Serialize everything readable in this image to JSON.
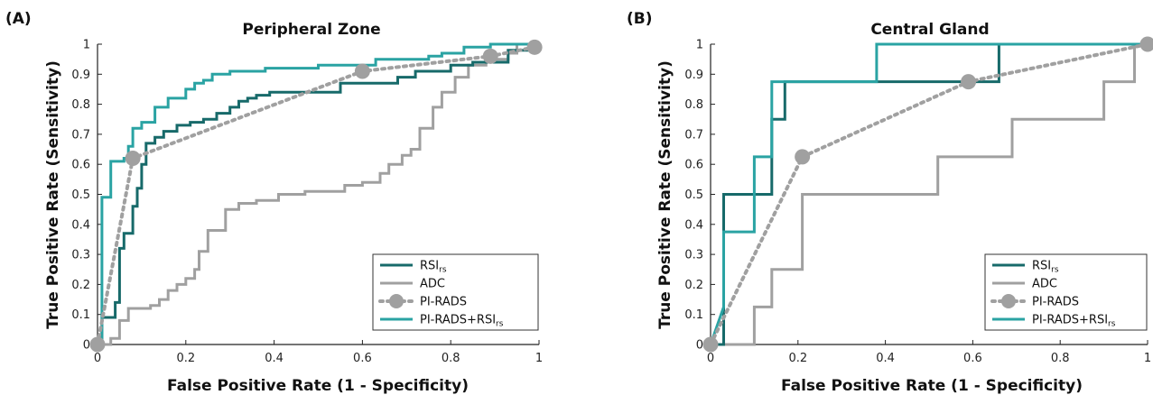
{
  "colors": {
    "rsi": "#176a6a",
    "adc": "#a0a0a0",
    "pirads": "#a0a0a0",
    "combo": "#2aa3a3",
    "axis": "#222222"
  },
  "chart_data": [
    {
      "type": "line",
      "panel_label": "(A)",
      "title": "Peripheral Zone",
      "xlabel": "False Positive Rate (1 - Specificity)",
      "ylabel": "True Positive Rate (Sensitivity)",
      "xlim": [
        0,
        1
      ],
      "ylim": [
        0,
        1
      ],
      "xticks": [
        "0",
        "0.2",
        "0.4",
        "0.6",
        "0.8",
        "1"
      ],
      "yticks": [
        "0",
        "0.1",
        "0.2",
        "0.3",
        "0.4",
        "0.5",
        "0.6",
        "0.7",
        "0.8",
        "0.9",
        "1"
      ],
      "grid": false,
      "legend_position": "bottom-right",
      "series": [
        {
          "name": "RSI",
          "subscript": "rs",
          "style": "step",
          "color_key": "rsi",
          "x": [
            0,
            0.01,
            0.01,
            0.04,
            0.04,
            0.05,
            0.05,
            0.06,
            0.06,
            0.08,
            0.08,
            0.09,
            0.09,
            0.1,
            0.1,
            0.11,
            0.11,
            0.13,
            0.13,
            0.15,
            0.15,
            0.18,
            0.18,
            0.21,
            0.21,
            0.24,
            0.24,
            0.27,
            0.27,
            0.3,
            0.3,
            0.32,
            0.32,
            0.34,
            0.34,
            0.36,
            0.36,
            0.39,
            0.39,
            0.55,
            0.55,
            0.68,
            0.68,
            0.72,
            0.72,
            0.8,
            0.8,
            0.85,
            0.85,
            0.93,
            0.93,
            1.0,
            1.0
          ],
          "y": [
            0,
            0,
            0.09,
            0.09,
            0.14,
            0.14,
            0.32,
            0.32,
            0.37,
            0.37,
            0.46,
            0.46,
            0.52,
            0.52,
            0.6,
            0.6,
            0.67,
            0.67,
            0.69,
            0.69,
            0.71,
            0.71,
            0.73,
            0.73,
            0.74,
            0.74,
            0.75,
            0.75,
            0.77,
            0.77,
            0.79,
            0.79,
            0.81,
            0.81,
            0.82,
            0.82,
            0.83,
            0.83,
            0.84,
            0.84,
            0.87,
            0.87,
            0.89,
            0.89,
            0.91,
            0.91,
            0.93,
            0.93,
            0.94,
            0.94,
            0.98,
            0.98,
            1.0
          ]
        },
        {
          "name": "ADC",
          "style": "step",
          "color_key": "adc",
          "x": [
            0,
            0.03,
            0.03,
            0.05,
            0.05,
            0.07,
            0.07,
            0.12,
            0.12,
            0.14,
            0.14,
            0.16,
            0.16,
            0.18,
            0.18,
            0.2,
            0.2,
            0.22,
            0.22,
            0.23,
            0.23,
            0.25,
            0.25,
            0.29,
            0.29,
            0.32,
            0.32,
            0.36,
            0.36,
            0.41,
            0.41,
            0.47,
            0.47,
            0.56,
            0.56,
            0.6,
            0.6,
            0.64,
            0.64,
            0.66,
            0.66,
            0.69,
            0.69,
            0.71,
            0.71,
            0.73,
            0.73,
            0.76,
            0.76,
            0.78,
            0.78,
            0.81,
            0.81,
            0.84,
            0.84,
            0.88,
            0.88,
            0.93,
            0.93,
            0.95,
            0.95,
            1.0
          ],
          "y": [
            0,
            0,
            0.02,
            0.02,
            0.08,
            0.08,
            0.12,
            0.12,
            0.13,
            0.13,
            0.15,
            0.15,
            0.18,
            0.18,
            0.2,
            0.2,
            0.22,
            0.22,
            0.25,
            0.25,
            0.31,
            0.31,
            0.38,
            0.38,
            0.45,
            0.45,
            0.47,
            0.47,
            0.48,
            0.48,
            0.5,
            0.5,
            0.51,
            0.51,
            0.53,
            0.53,
            0.54,
            0.54,
            0.57,
            0.57,
            0.6,
            0.6,
            0.63,
            0.63,
            0.65,
            0.65,
            0.72,
            0.72,
            0.79,
            0.79,
            0.84,
            0.84,
            0.89,
            0.89,
            0.93,
            0.93,
            0.95,
            0.95,
            0.97,
            0.97,
            1.0,
            1.0
          ]
        },
        {
          "name": "PI-RADS",
          "style": "dotted-markers",
          "color_key": "pirads",
          "x": [
            0,
            0.08,
            0.6,
            0.89,
            0.99
          ],
          "y": [
            0,
            0.62,
            0.91,
            0.96,
            0.99
          ]
        },
        {
          "name": "PI-RADS+RSI",
          "subscript": "rs",
          "style": "step",
          "color_key": "combo",
          "x": [
            0,
            0.01,
            0.01,
            0.03,
            0.03,
            0.06,
            0.06,
            0.07,
            0.07,
            0.08,
            0.08,
            0.1,
            0.1,
            0.13,
            0.13,
            0.16,
            0.16,
            0.2,
            0.2,
            0.22,
            0.22,
            0.24,
            0.24,
            0.26,
            0.26,
            0.3,
            0.3,
            0.38,
            0.38,
            0.5,
            0.5,
            0.63,
            0.63,
            0.75,
            0.75,
            0.78,
            0.78,
            0.83,
            0.83,
            0.89,
            0.89,
            1.0
          ],
          "y": [
            0,
            0,
            0.49,
            0.49,
            0.61,
            0.61,
            0.62,
            0.62,
            0.66,
            0.66,
            0.72,
            0.72,
            0.74,
            0.74,
            0.79,
            0.79,
            0.82,
            0.82,
            0.85,
            0.85,
            0.87,
            0.87,
            0.88,
            0.88,
            0.9,
            0.9,
            0.91,
            0.91,
            0.92,
            0.92,
            0.93,
            0.93,
            0.95,
            0.95,
            0.96,
            0.96,
            0.97,
            0.97,
            0.99,
            0.99,
            1.0,
            1.0
          ]
        }
      ]
    },
    {
      "type": "line",
      "panel_label": "(B)",
      "title": "Central Gland",
      "xlabel": "False Positive Rate (1 - Specificity)",
      "ylabel": "True Positive Rate (Sensitivity)",
      "xlim": [
        0,
        1
      ],
      "ylim": [
        0,
        1
      ],
      "xticks": [
        "0",
        "0.2",
        "0.4",
        "0.6",
        "0.8",
        "1"
      ],
      "yticks": [
        "0",
        "0.1",
        "0.2",
        "0.3",
        "0.4",
        "0.5",
        "0.6",
        "0.7",
        "0.8",
        "0.9",
        "1"
      ],
      "grid": false,
      "legend_position": "bottom-right",
      "series": [
        {
          "name": "RSI",
          "subscript": "rs",
          "style": "step",
          "color_key": "rsi",
          "x": [
            0,
            0.03,
            0.03,
            0.14,
            0.14,
            0.17,
            0.17,
            0.66,
            0.66,
            1.0
          ],
          "y": [
            0,
            0,
            0.5,
            0.5,
            0.75,
            0.75,
            0.875,
            0.875,
            1.0,
            1.0
          ]
        },
        {
          "name": "ADC",
          "style": "step",
          "color_key": "adc",
          "x": [
            0,
            0.1,
            0.1,
            0.14,
            0.14,
            0.21,
            0.21,
            0.52,
            0.52,
            0.69,
            0.69,
            0.9,
            0.9,
            0.97,
            0.97,
            1.0
          ],
          "y": [
            0,
            0,
            0.125,
            0.125,
            0.25,
            0.25,
            0.5,
            0.5,
            0.625,
            0.625,
            0.75,
            0.75,
            0.875,
            0.875,
            1.0,
            1.0
          ]
        },
        {
          "name": "PI-RADS",
          "style": "dotted-markers",
          "color_key": "pirads",
          "x": [
            0,
            0.21,
            0.59,
            1.0
          ],
          "y": [
            0,
            0.625,
            0.875,
            1.0
          ]
        },
        {
          "name": "PI-RADS+RSI",
          "subscript": "rs",
          "style": "step",
          "color_key": "combo",
          "x": [
            0,
            0.03,
            0.03,
            0.1,
            0.1,
            0.14,
            0.14,
            0.38,
            0.38,
            1.0
          ],
          "y": [
            0,
            0.125,
            0.375,
            0.375,
            0.625,
            0.625,
            0.875,
            0.875,
            1.0,
            1.0
          ]
        }
      ]
    }
  ]
}
